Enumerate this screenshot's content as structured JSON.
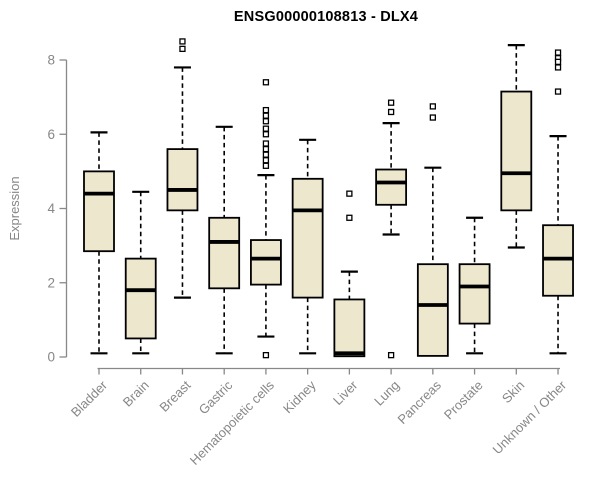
{
  "chart_data": {
    "type": "boxplot",
    "title": "ENSG00000108813 - DLX4",
    "xlabel": "",
    "ylabel": "Expression",
    "ylim": [
      0,
      8
    ],
    "yticks": [
      0,
      2,
      4,
      6,
      8
    ],
    "grid": false,
    "legend": "none",
    "axis_color": "#888888",
    "label_color": "#878787",
    "box_fill": "#EDE8CD",
    "box_stroke": "#000000",
    "categories": [
      "Bladder",
      "Brain",
      "Breast",
      "Gastric",
      "Hematopoietic cells",
      "Kidney",
      "Liver",
      "Lung",
      "Pancreas",
      "Prostate",
      "Skin",
      "Unknown / Other"
    ],
    "series": [
      {
        "category": "Bladder",
        "whisker_low": 0.1,
        "q1": 2.85,
        "median": 4.4,
        "q3": 5.0,
        "whisker_high": 6.05,
        "outliers": []
      },
      {
        "category": "Brain",
        "whisker_low": 0.1,
        "q1": 0.5,
        "median": 1.8,
        "q3": 2.65,
        "whisker_high": 4.45,
        "outliers": []
      },
      {
        "category": "Breast",
        "whisker_low": 1.6,
        "q1": 3.95,
        "median": 4.5,
        "q3": 5.6,
        "whisker_high": 7.8,
        "outliers": [
          8.5,
          8.3
        ]
      },
      {
        "category": "Gastric",
        "whisker_low": 0.1,
        "q1": 1.85,
        "median": 3.1,
        "q3": 3.75,
        "whisker_high": 6.2,
        "outliers": []
      },
      {
        "category": "Hematopoietic cells",
        "whisker_low": 0.55,
        "q1": 1.95,
        "median": 2.65,
        "q3": 3.15,
        "whisker_high": 4.9,
        "outliers": [
          7.4,
          6.65,
          6.5,
          6.35,
          6.15,
          6.0,
          5.75,
          5.6,
          5.45,
          5.3,
          5.15,
          0.05
        ]
      },
      {
        "category": "Kidney",
        "whisker_low": 0.1,
        "q1": 1.6,
        "median": 3.95,
        "q3": 4.8,
        "whisker_high": 5.85,
        "outliers": []
      },
      {
        "category": "Liver",
        "whisker_low": 0.0,
        "q1": 0.02,
        "median": 0.1,
        "q3": 1.55,
        "whisker_high": 2.3,
        "outliers": [
          4.4,
          3.75
        ]
      },
      {
        "category": "Lung",
        "whisker_low": 3.3,
        "q1": 4.1,
        "median": 4.7,
        "q3": 5.05,
        "whisker_high": 6.3,
        "outliers": [
          6.85,
          6.6,
          0.05
        ]
      },
      {
        "category": "Pancreas",
        "whisker_low": 0.03,
        "q1": 0.03,
        "median": 1.4,
        "q3": 2.5,
        "whisker_high": 5.1,
        "outliers": [
          6.75,
          6.45
        ]
      },
      {
        "category": "Prostate",
        "whisker_low": 0.1,
        "q1": 0.9,
        "median": 1.9,
        "q3": 2.5,
        "whisker_high": 3.75,
        "outliers": []
      },
      {
        "category": "Skin",
        "whisker_low": 2.95,
        "q1": 3.95,
        "median": 4.95,
        "q3": 7.15,
        "whisker_high": 8.4,
        "outliers": []
      },
      {
        "category": "Unknown / Other",
        "whisker_low": 0.1,
        "q1": 1.65,
        "median": 2.65,
        "q3": 3.55,
        "whisker_high": 5.95,
        "outliers": [
          8.2,
          8.05,
          7.95,
          7.8,
          7.15
        ]
      }
    ]
  }
}
